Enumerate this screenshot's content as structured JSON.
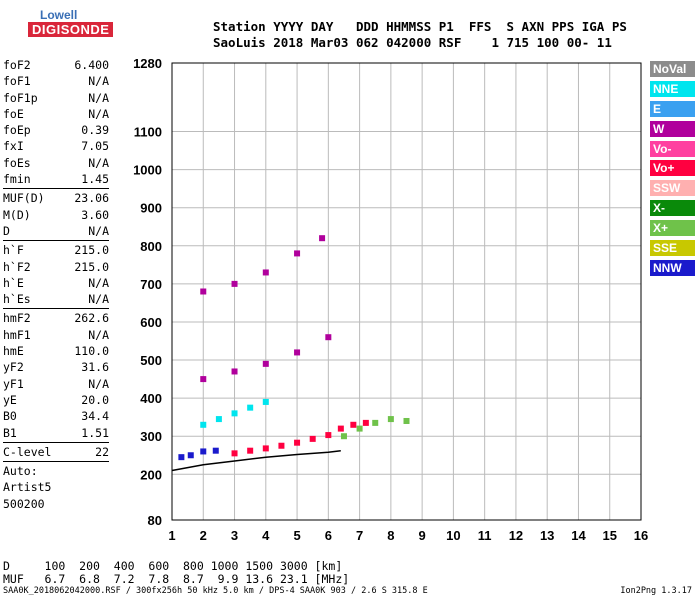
{
  "logo": {
    "line1": "Lowell",
    "line2": "DIGISONDE"
  },
  "header": {
    "row1": "Station YYYY DAY   DDD HHMMSS P1  FFS  S AXN PPS IGA PS",
    "row2": "SaoLuis 2018 Mar03 062 042000 RSF    1 715 100 00- 11"
  },
  "params": [
    {
      "k": "foF2",
      "v": "6.400"
    },
    {
      "k": "foF1",
      "v": "N/A"
    },
    {
      "k": "foF1p",
      "v": "N/A"
    },
    {
      "k": "foE",
      "v": "N/A"
    },
    {
      "k": "foEp",
      "v": "0.39"
    },
    {
      "k": "fxI",
      "v": "7.05"
    },
    {
      "k": "foEs",
      "v": "N/A"
    },
    {
      "k": "fmin",
      "v": "1.45"
    },
    {
      "k": "MUF(D)",
      "v": "23.06"
    },
    {
      "k": "M(D)",
      "v": "3.60"
    },
    {
      "k": "D",
      "v": "N/A"
    },
    {
      "k": "h`F",
      "v": "215.0"
    },
    {
      "k": "h`F2",
      "v": "215.0"
    },
    {
      "k": "h`E",
      "v": "N/A"
    },
    {
      "k": "h`Es",
      "v": "N/A"
    },
    {
      "k": "hmF2",
      "v": "262.6"
    },
    {
      "k": "hmF1",
      "v": "N/A"
    },
    {
      "k": "hmE",
      "v": "110.0"
    },
    {
      "k": "yF2",
      "v": "31.6"
    },
    {
      "k": "yF1",
      "v": "N/A"
    },
    {
      "k": "yE",
      "v": "20.0"
    },
    {
      "k": "B0",
      "v": "34.4"
    },
    {
      "k": "B1",
      "v": "1.51"
    },
    {
      "k": "C-level",
      "v": "22"
    },
    {
      "k": "Auto:",
      "v": ""
    },
    {
      "k": "Artist5",
      "v": ""
    },
    {
      "k": "500200",
      "v": ""
    }
  ],
  "legend": [
    {
      "label": "NoVal",
      "color": "#8c8c8c"
    },
    {
      "label": "NNE",
      "color": "#00e5ee"
    },
    {
      "label": "E",
      "color": "#3aa0f0"
    },
    {
      "label": "W",
      "color": "#b0009c"
    },
    {
      "label": "Vo-",
      "color": "#ff40a0"
    },
    {
      "label": "Vo+",
      "color": "#ff0040"
    },
    {
      "label": "SSW",
      "color": "#ffb0b0"
    },
    {
      "label": "X-",
      "color": "#0a8a0a"
    },
    {
      "label": "X+",
      "color": "#6fc24a"
    },
    {
      "label": "SSE",
      "color": "#c8c800"
    },
    {
      "label": "NNW",
      "color": "#1a1acc"
    }
  ],
  "bottom": {
    "d_row": "D     100  200  400  600  800 1000 1500 3000 [km]",
    "muf_row": "MUF   6.7  6.8  7.2  7.8  8.7  9.9 13.6 23.1 [MHz]",
    "footer": "SAA0K_2018062042000.RSF / 300fx256h 50 kHz 5.0 km / DPS-4 SAA0K 903 / 2.6 S 315.8 E",
    "version": "Ion2Png 1.3.17"
  },
  "chart_data": {
    "type": "scatter",
    "title": "",
    "xlabel": "",
    "ylabel": "",
    "xlim": [
      1,
      16
    ],
    "ylim": [
      80,
      1280
    ],
    "x_ticks": [
      1,
      2,
      3,
      4,
      5,
      6,
      7,
      8,
      9,
      10,
      11,
      12,
      13,
      14,
      15,
      16
    ],
    "y_ticks": [
      80,
      200,
      300,
      400,
      500,
      600,
      700,
      800,
      900,
      1000,
      1100,
      1280
    ],
    "grid": true,
    "series": [
      {
        "name": "Vo+",
        "color": "#ff0040",
        "points": [
          [
            3.0,
            255
          ],
          [
            3.5,
            262
          ],
          [
            4.0,
            268
          ],
          [
            4.5,
            275
          ],
          [
            5.0,
            283
          ],
          [
            5.5,
            293
          ],
          [
            6.0,
            303
          ],
          [
            6.4,
            320
          ],
          [
            6.8,
            330
          ],
          [
            7.2,
            335
          ]
        ]
      },
      {
        "name": "X+",
        "color": "#6fc24a",
        "points": [
          [
            6.5,
            300
          ],
          [
            7.0,
            320
          ],
          [
            7.5,
            335
          ],
          [
            8.0,
            345
          ],
          [
            8.5,
            340
          ]
        ]
      },
      {
        "name": "NNE",
        "color": "#00e5ee",
        "points": [
          [
            2.0,
            330
          ],
          [
            2.5,
            345
          ],
          [
            3.0,
            360
          ],
          [
            3.5,
            375
          ],
          [
            4.0,
            390
          ]
        ]
      },
      {
        "name": "W",
        "color": "#b0009c",
        "points": [
          [
            2.0,
            450
          ],
          [
            3.0,
            470
          ],
          [
            4.0,
            490
          ],
          [
            5.0,
            520
          ],
          [
            6.0,
            560
          ],
          [
            2.0,
            680
          ],
          [
            3.0,
            700
          ],
          [
            4.0,
            730
          ],
          [
            5.0,
            780
          ],
          [
            5.8,
            820
          ]
        ]
      },
      {
        "name": "NNW",
        "color": "#1a1acc",
        "points": [
          [
            1.3,
            245
          ],
          [
            1.6,
            250
          ],
          [
            2.0,
            260
          ],
          [
            2.4,
            262
          ]
        ]
      }
    ],
    "profile_curves": [
      {
        "name": "trace",
        "points": [
          [
            1.0,
            210
          ],
          [
            2.0,
            225
          ],
          [
            3.0,
            235
          ],
          [
            4.0,
            245
          ],
          [
            5.0,
            252
          ],
          [
            6.0,
            258
          ],
          [
            6.4,
            262
          ]
        ]
      }
    ]
  }
}
